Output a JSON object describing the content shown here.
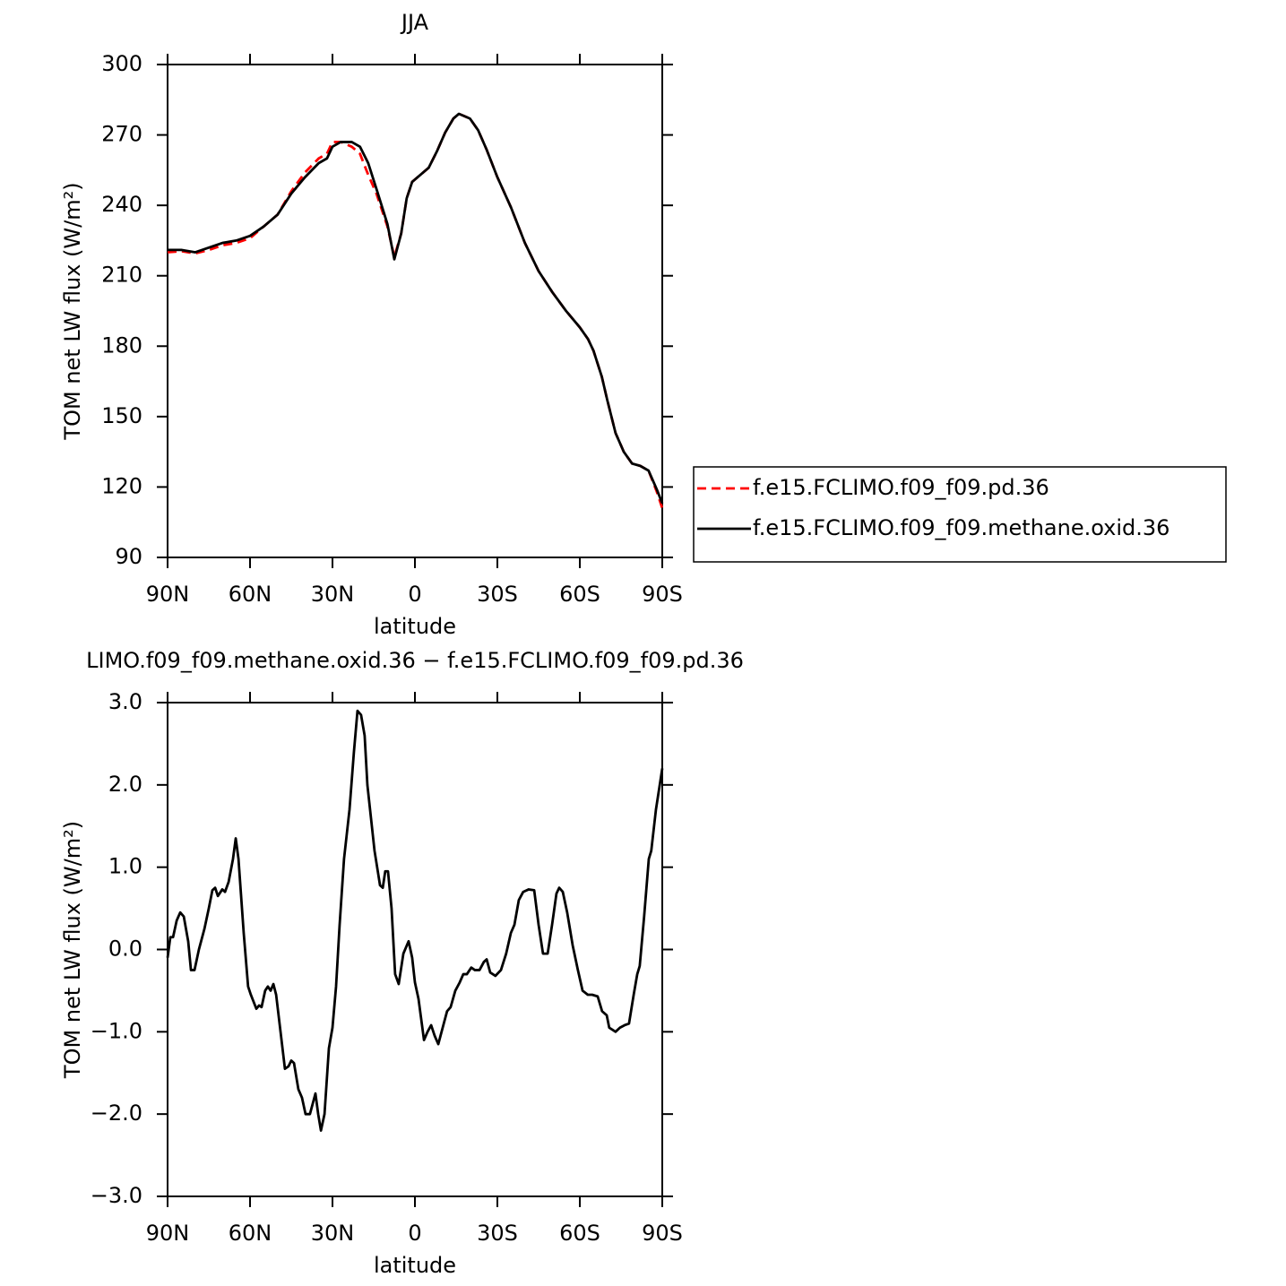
{
  "chart_data": [
    {
      "type": "line",
      "title": "JJA",
      "xlabel": "latitude",
      "ylabel": "TOM net LW flux (W/m²)",
      "x": [
        90,
        85,
        80,
        75,
        70,
        65,
        60,
        55,
        50,
        45,
        40,
        35,
        32,
        30,
        27,
        23,
        20,
        17,
        14,
        10,
        7.5,
        5,
        3,
        1,
        -2,
        -5,
        -8,
        -11,
        -14,
        -16,
        -20,
        -23,
        -26,
        -30,
        -35,
        -40,
        -45,
        -50,
        -55,
        -60,
        -63,
        -65,
        -68,
        -70,
        -73,
        -76,
        -79,
        -82,
        -85,
        -88,
        -90
      ],
      "series": [
        {
          "name": "f.e15.FCLIMO.f09_f09.pd.36",
          "color": "#ff0000",
          "style": "dashed",
          "values": [
            220,
            220.5,
            219.5,
            221,
            223,
            224,
            226,
            231,
            236,
            246,
            254,
            260,
            262,
            267,
            267,
            265,
            262,
            253,
            245,
            231,
            218,
            228,
            243,
            250,
            253,
            256,
            263,
            271,
            277,
            279,
            277,
            272,
            264,
            252,
            239,
            224,
            212,
            203,
            195,
            188,
            183,
            178,
            167,
            157,
            143,
            135,
            130,
            129,
            127,
            118,
            111
          ]
        },
        {
          "name": "f.e15.FCLIMO.f09_f09.methane.oxid.36",
          "color": "#000000",
          "style": "solid",
          "values": [
            221,
            221,
            220,
            222,
            224,
            225,
            227,
            231,
            236,
            245,
            252,
            258,
            260,
            265,
            267,
            267,
            265,
            258,
            247,
            232,
            217,
            228,
            243,
            250,
            253,
            256,
            263,
            271,
            277,
            279,
            277,
            272,
            264,
            252,
            239,
            224,
            212,
            203,
            195,
            188,
            183,
            178,
            167,
            157,
            143,
            135,
            130,
            129,
            127,
            119,
            113
          ]
        }
      ],
      "xlim": [
        90,
        -90
      ],
      "xticks": [
        {
          "value": 90,
          "label": "90N"
        },
        {
          "value": 60,
          "label": "60N"
        },
        {
          "value": 30,
          "label": "30N"
        },
        0,
        {
          "value": -30,
          "label": "30S"
        },
        {
          "value": -60,
          "label": "60S"
        },
        {
          "value": -90,
          "label": "90S"
        }
      ],
      "ylim": [
        90,
        300
      ],
      "yticks": [
        90,
        120,
        150,
        180,
        210,
        240,
        270,
        300
      ],
      "legend": "right"
    },
    {
      "type": "line",
      "title": "LIMO.f09_f09.methane.oxid.36 − f.e15.FCLIMO.f09_f09.pd.36",
      "xlabel": "latitude",
      "ylabel": "TOM net LW flux (W/m²)",
      "x": [
        90,
        89,
        88,
        86.7,
        85.4,
        84.1,
        82.5,
        81.5,
        80.2,
        78.6,
        76.6,
        75,
        73.7,
        72.7,
        71.7,
        70.1,
        69.1,
        67.8,
        66.2,
        65.2,
        64.2,
        62.3,
        60.7,
        59.7,
        57.7,
        56.7,
        55.8,
        54.5,
        53.5,
        52.5,
        51.5,
        50.5,
        48.9,
        47.3,
        46,
        45,
        44,
        42.4,
        41.1,
        39.8,
        38.2,
        36.2,
        35.2,
        34.2,
        32.9,
        31.3,
        30,
        28.7,
        27.4,
        25.8,
        23.8,
        22.2,
        20.9,
        19.6,
        18.3,
        17.3,
        14.7,
        12.7,
        11.7,
        10.8,
        9.8,
        8.5,
        7.2,
        5.9,
        4.2,
        2.3,
        1,
        0,
        -1.3,
        -3.3,
        -4.6,
        -5.9,
        -7.2,
        -8.5,
        -10.1,
        -11.7,
        -13,
        -14.7,
        -16.3,
        -17.6,
        -18.9,
        -20.5,
        -21.8,
        -23.5,
        -25.1,
        -26.1,
        -27.4,
        -29.3,
        -31.3,
        -33.2,
        -34.9,
        -36.2,
        -37.8,
        -39.4,
        -41.4,
        -43.4,
        -45,
        -46.6,
        -48.3,
        -49.9,
        -51.5,
        -52.5,
        -53.8,
        -55.4,
        -57.4,
        -59.3,
        -61,
        -62.9,
        -64.5,
        -66.5,
        -68.1,
        -69.8,
        -70.7,
        -73,
        -74.6,
        -76.3,
        -77.9,
        -79.6,
        -80.9,
        -81.8,
        -83.4,
        -85.1,
        -86,
        -87.7,
        -90
      ],
      "series": [
        {
          "color": "#000000",
          "style": "solid",
          "values": [
            -0.1,
            0.15,
            0.15,
            0.35,
            0.45,
            0.4,
            0.1,
            -0.25,
            -0.25,
            0,
            0.25,
            0.5,
            0.72,
            0.75,
            0.65,
            0.73,
            0.7,
            0.82,
            1.1,
            1.35,
            1.1,
            0.2,
            -0.45,
            -0.55,
            -0.72,
            -0.68,
            -0.7,
            -0.5,
            -0.45,
            -0.5,
            -0.42,
            -0.55,
            -1,
            -1.45,
            -1.42,
            -1.35,
            -1.38,
            -1.7,
            -1.8,
            -2,
            -2,
            -1.75,
            -2,
            -2.2,
            -2,
            -1.2,
            -0.95,
            -0.45,
            0.3,
            1.1,
            1.7,
            2.4,
            2.9,
            2.85,
            2.6,
            2,
            1.2,
            0.78,
            0.75,
            0.95,
            0.95,
            0.5,
            -0.3,
            -0.42,
            -0.05,
            0.1,
            -0.1,
            -0.4,
            -0.6,
            -1.1,
            -1,
            -0.92,
            -1.05,
            -1.15,
            -0.95,
            -0.75,
            -0.7,
            -0.5,
            -0.4,
            -0.3,
            -0.3,
            -0.22,
            -0.25,
            -0.25,
            -0.15,
            -0.12,
            -0.28,
            -0.32,
            -0.25,
            -0.05,
            0.2,
            0.3,
            0.6,
            0.7,
            0.73,
            0.72,
            0.3,
            -0.05,
            -0.05,
            0.3,
            0.68,
            0.75,
            0.7,
            0.45,
            0.05,
            -0.25,
            -0.5,
            -0.55,
            -0.55,
            -0.57,
            -0.75,
            -0.8,
            -0.95,
            -1,
            -0.95,
            -0.92,
            -0.9,
            -0.55,
            -0.3,
            -0.2,
            0.4,
            1.1,
            1.2,
            1.7,
            2.2
          ]
        }
      ],
      "xlim": [
        90,
        -90
      ],
      "xticks": [
        {
          "value": 90,
          "label": "90N"
        },
        {
          "value": 60,
          "label": "60N"
        },
        {
          "value": 30,
          "label": "30N"
        },
        0,
        {
          "value": -30,
          "label": "30S"
        },
        {
          "value": -60,
          "label": "60S"
        },
        {
          "value": -90,
          "label": "90S"
        }
      ],
      "ylim": [
        -3,
        3
      ],
      "yticks": [
        {
          "value": -3,
          "label": "−3.0"
        },
        {
          "value": -2,
          "label": "−2.0"
        },
        {
          "value": -1,
          "label": "−1.0"
        },
        {
          "value": 0,
          "label": "0.0"
        },
        {
          "value": 1,
          "label": "1.0"
        },
        {
          "value": 2,
          "label": "2.0"
        },
        {
          "value": 3,
          "label": "3.0"
        }
      ]
    }
  ]
}
